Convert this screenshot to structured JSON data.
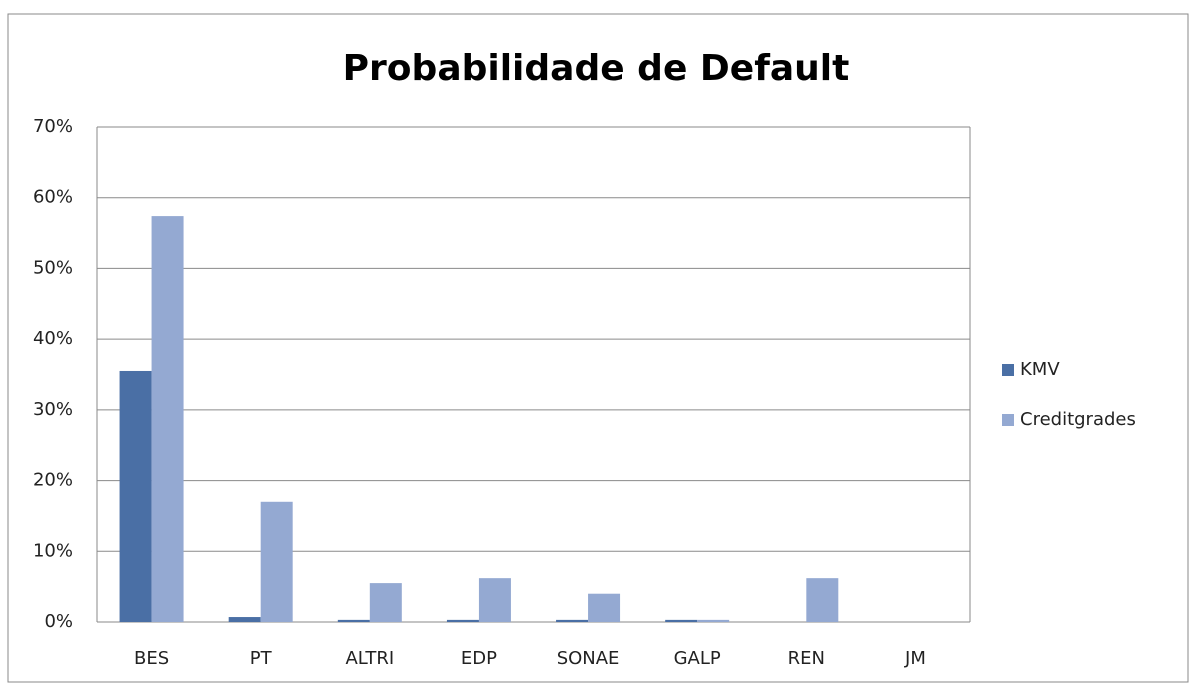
{
  "chart_data": {
    "type": "bar",
    "title": "Probabilidade de Default",
    "categories": [
      "BES",
      "PT",
      "ALTRI",
      "EDP",
      "SONAE",
      "GALP",
      "REN",
      "JM"
    ],
    "series": [
      {
        "name": "KMV",
        "color": "#4a6fa5",
        "values": [
          35.5,
          0.7,
          0.3,
          0.3,
          0.3,
          0.3,
          0,
          0
        ]
      },
      {
        "name": "Creditgrades",
        "color": "#94a9d2",
        "values": [
          57.4,
          17.0,
          5.5,
          6.2,
          4.0,
          0.3,
          6.2,
          0
        ]
      }
    ],
    "ylim": [
      0,
      70
    ],
    "yticks": [
      {
        "value": 0,
        "label": "0%"
      },
      {
        "value": 10,
        "label": "10%"
      },
      {
        "value": 20,
        "label": "20%"
      },
      {
        "value": 30,
        "label": "30%"
      },
      {
        "value": 40,
        "label": "40%"
      },
      {
        "value": 50,
        "label": "50%"
      },
      {
        "value": 60,
        "label": "60%"
      },
      {
        "value": 70,
        "label": "70%"
      }
    ],
    "grid": true,
    "legend": "right"
  }
}
